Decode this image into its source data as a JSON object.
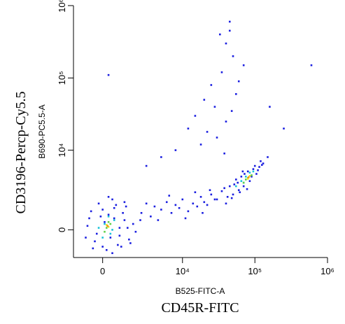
{
  "chart_data": {
    "type": "scatter",
    "x_scale": "biexponential",
    "y_scale": "biexponential",
    "linear_width": 800,
    "xlim": [
      -1700,
      1000000
    ],
    "ylim": [
      -1600,
      1000000
    ],
    "xticks": [
      0,
      {
        "value": 10000,
        "label": "10⁴"
      },
      {
        "value": 100000,
        "label": "10⁵"
      },
      {
        "value": 1000000,
        "label": "10⁶"
      }
    ],
    "yticks": [
      0,
      {
        "value": 10000,
        "label": "10⁴"
      },
      {
        "value": 100000,
        "label": "10⁵"
      },
      {
        "value": 1000000,
        "label": "10⁶"
      }
    ],
    "x_label": "B525-FITC-A",
    "x_title": "CD45R-FITC",
    "y_label": "B690-PC5.5-A",
    "y_title": "CD3196-Percp-Cy5.5",
    "series": [
      {
        "color": "#1a1ee0",
        "x": [
          15000,
          20000,
          25000,
          30000,
          35000,
          40000,
          45000,
          50000,
          60000,
          8000,
          12000,
          18000,
          28000,
          40000,
          55000,
          70000,
          3000,
          5000,
          22000,
          33000,
          48000,
          160000,
          250000,
          600000,
          45000,
          38000,
          300
        ],
        "y": [
          30000,
          50000,
          80000,
          15000,
          120000,
          300000,
          600000,
          200000,
          90000,
          10000,
          20000,
          12000,
          40000,
          25000,
          60000,
          150000,
          6000,
          8000,
          18000,
          400000,
          35000,
          40000,
          20000,
          150000,
          450000,
          9000,
          110000
        ]
      },
      {
        "color": "#1a1ee0",
        "x": [
          2500,
          3000,
          3500,
          4000,
          5000,
          6000,
          7000,
          8000,
          9000,
          10000,
          12000,
          14000,
          16000,
          18000,
          20000,
          22000,
          25000,
          28000,
          4500,
          6500,
          11000,
          15000,
          19000,
          24000
        ],
        "y": [
          900,
          1500,
          700,
          1300,
          1100,
          1600,
          900,
          1400,
          1200,
          1800,
          1000,
          1500,
          1300,
          2000,
          1600,
          1400,
          2200,
          1800,
          500,
          2100,
          600,
          2400,
          900,
          2600
        ]
      },
      {
        "color": "#1a1ee0",
        "x": [
          -800,
          -400,
          0,
          300,
          600,
          900,
          1200,
          1500,
          -600,
          -200,
          200,
          500,
          800,
          1100,
          1400,
          1800,
          -300,
          100,
          400,
          700,
          1000,
          -500,
          0,
          600,
          1300,
          2000,
          -900,
          -100,
          300,
          900,
          1600,
          2400,
          -700,
          500,
          1200
        ],
        "y": [
          200,
          -600,
          -900,
          800,
          1200,
          -300,
          500,
          -500,
          1000,
          1500,
          -1100,
          1800,
          -800,
          900,
          100,
          300,
          -200,
          400,
          -400,
          1400,
          -900,
          -1000,
          1100,
          600,
          1300,
          -100,
          -400,
          700,
          2000,
          100,
          -700,
          500,
          600,
          -1300,
          1600
        ]
      },
      {
        "color": "#1a1ee0",
        "x": [
          30000,
          35000,
          40000,
          45000,
          50000,
          55000,
          60000,
          65000,
          70000,
          80000,
          90000,
          100000,
          110000,
          120000,
          130000,
          150000,
          42000,
          52000,
          62000,
          72000,
          85000,
          95000,
          105000,
          125000,
          38000,
          48000,
          58000,
          68000,
          78000,
          115000
        ],
        "y": [
          1800,
          2500,
          1500,
          3000,
          2200,
          3800,
          2600,
          4200,
          3000,
          5000,
          4200,
          6000,
          5200,
          7000,
          6500,
          8000,
          2000,
          3200,
          2400,
          4600,
          3600,
          5400,
          4600,
          6200,
          2800,
          1900,
          3400,
          5000,
          2700,
          5800
        ]
      },
      {
        "color": "#17c3d8",
        "x": [
          100,
          400,
          -200,
          600,
          300,
          0,
          500
        ],
        "y": [
          300,
          -200,
          100,
          500,
          700,
          -400,
          0
        ]
      },
      {
        "color": "#17c3d8",
        "x": [
          55000,
          65000,
          75000,
          85000,
          95000,
          70000
        ],
        "y": [
          3000,
          3600,
          4200,
          4800,
          5000,
          3400
        ]
      },
      {
        "color": "#5fd04a",
        "x": [
          200,
          400,
          100,
          300
        ],
        "y": [
          100,
          300,
          -100,
          400
        ]
      },
      {
        "color": "#5fd04a",
        "x": [
          70000,
          80000,
          90000,
          75000
        ],
        "y": [
          3400,
          4000,
          4400,
          3800
        ]
      },
      {
        "color": "#f2e31b",
        "x": [
          300,
          200
        ],
        "y": [
          150,
          250
        ]
      },
      {
        "color": "#f2e31b",
        "x": [
          80000,
          85000
        ],
        "y": [
          3900,
          4300
        ]
      },
      {
        "color": "#f28c1a",
        "x": [
          250
        ],
        "y": [
          200
        ]
      },
      {
        "color": "#f28c1a",
        "x": [
          82000
        ],
        "y": [
          4100
        ]
      }
    ]
  }
}
